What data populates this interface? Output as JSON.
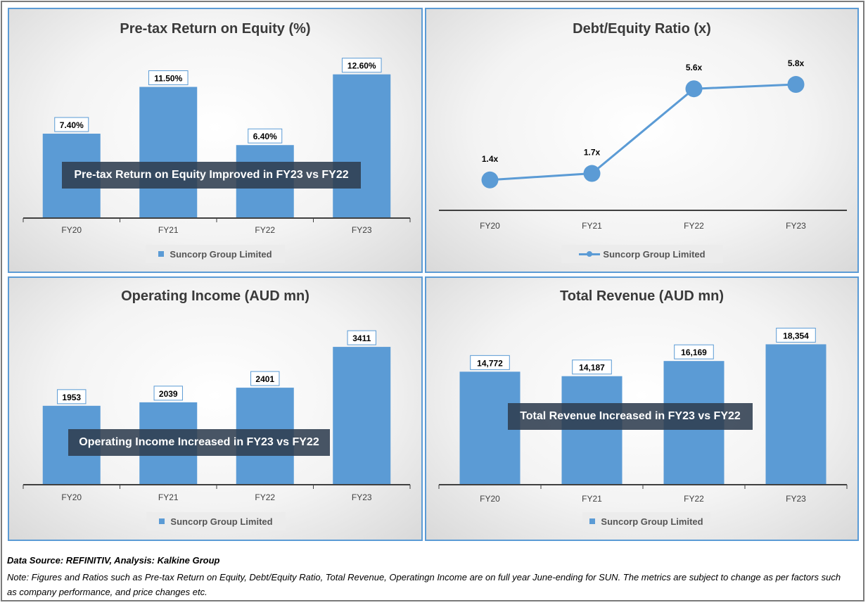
{
  "charts": [
    {
      "title": "Pre-tax Return on Equity (%)",
      "annotation": "Pre-tax Return on Equity Improved in FY23 vs FY22",
      "legend": "Suncorp Group Limited",
      "chart_data": {
        "type": "bar",
        "categories": [
          "FY20",
          "FY21",
          "FY22",
          "FY23"
        ],
        "series": [
          {
            "name": "Suncorp Group Limited",
            "values": [
              7.4,
              11.5,
              6.4,
              12.6
            ]
          }
        ],
        "data_labels": [
          "7.40%",
          "11.50%",
          "6.40%",
          "12.60%"
        ],
        "title": "Pre-tax Return on Equity (%)",
        "ylim": [
          0,
          14
        ],
        "color": "#5b9bd5"
      }
    },
    {
      "title": "Debt/Equity Ratio (x)",
      "annotation": "",
      "legend": "Suncorp Group Limited",
      "chart_data": {
        "type": "line",
        "categories": [
          "FY20",
          "FY21",
          "FY22",
          "FY23"
        ],
        "series": [
          {
            "name": "Suncorp Group Limited",
            "values": [
              1.4,
              1.7,
              5.6,
              5.8
            ]
          }
        ],
        "data_labels": [
          "1.4x",
          "1.7x",
          "5.6x",
          "5.8x"
        ],
        "title": "Debt/Equity Ratio (x)",
        "ylim": [
          0,
          7
        ],
        "color": "#5b9bd5"
      }
    },
    {
      "title": "Operating Income (AUD mn)",
      "annotation": "Operating Income Increased in FY23 vs FY22",
      "legend": "Suncorp Group Limited",
      "chart_data": {
        "type": "bar",
        "categories": [
          "FY20",
          "FY21",
          "FY22",
          "FY23"
        ],
        "series": [
          {
            "name": "Suncorp Group Limited",
            "values": [
              1953,
              2039,
              2401,
              3411
            ]
          }
        ],
        "data_labels": [
          "1953",
          "2039",
          "2401",
          "3411"
        ],
        "title": "Operating Income (AUD mn)",
        "ylim": [
          0,
          3900
        ],
        "color": "#5b9bd5"
      }
    },
    {
      "title": "Total Revenue (AUD mn)",
      "annotation": "Total Revenue Increased in FY23 vs FY22",
      "legend": "Suncorp Group Limited",
      "chart_data": {
        "type": "bar",
        "categories": [
          "FY20",
          "FY21",
          "FY22",
          "FY23"
        ],
        "series": [
          {
            "name": "Suncorp Group Limited",
            "values": [
              14772,
              14187,
              16169,
              18354
            ]
          }
        ],
        "data_labels": [
          "14,772",
          "14,187",
          "16,169",
          "18,354"
        ],
        "title": "Total Revenue (AUD mn)",
        "ylim": [
          0,
          20600
        ],
        "color": "#5b9bd5"
      }
    }
  ],
  "footer": {
    "source": "Data Source: REFINITIV, Analysis: Kalkine Group",
    "note": "Note: Figures and Ratios such as Pre-tax Return on Equity, Debt/Equity Ratio, Total Revenue, Operatingn Income are on full year June-ending for SUN. The metrics are subject to change as per factors such as company performance, and price changes etc."
  }
}
